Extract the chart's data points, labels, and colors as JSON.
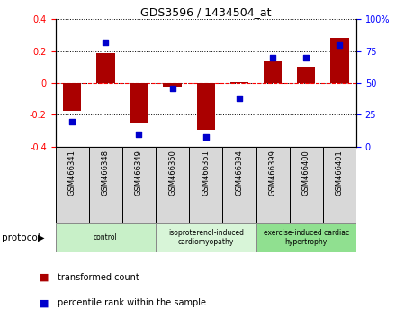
{
  "title": "GDS3596 / 1434504_at",
  "samples": [
    "GSM466341",
    "GSM466348",
    "GSM466349",
    "GSM466350",
    "GSM466351",
    "GSM466394",
    "GSM466399",
    "GSM466400",
    "GSM466401"
  ],
  "bar_values": [
    -0.175,
    0.185,
    -0.255,
    -0.025,
    -0.295,
    0.005,
    0.135,
    0.1,
    0.285
  ],
  "dot_values": [
    20,
    82,
    10,
    46,
    8,
    38,
    70,
    70,
    80
  ],
  "groups": [
    {
      "label": "control",
      "start": 0,
      "end": 3,
      "color": "#c8f0c8"
    },
    {
      "label": "isoproterenol-induced\ncardiomyopathy",
      "start": 3,
      "end": 6,
      "color": "#d8f5d8"
    },
    {
      "label": "exercise-induced cardiac\nhypertrophy",
      "start": 6,
      "end": 9,
      "color": "#90e090"
    }
  ],
  "ylim_left": [
    -0.4,
    0.4
  ],
  "ylim_right": [
    0,
    100
  ],
  "yticks_left": [
    -0.4,
    -0.2,
    0,
    0.2,
    0.4
  ],
  "yticks_right": [
    0,
    25,
    50,
    75,
    100
  ],
  "bar_color": "#aa0000",
  "dot_color": "#0000cc",
  "background_color": "#ffffff",
  "protocol_label": "protocol",
  "legend_bar": "transformed count",
  "legend_dot": "percentile rank within the sample"
}
